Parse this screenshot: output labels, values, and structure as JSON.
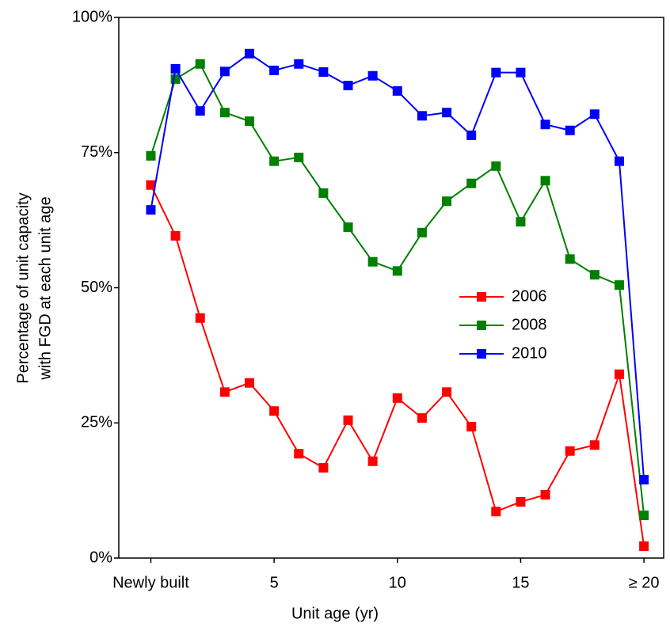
{
  "chart_data": {
    "type": "line",
    "xlabel": "Unit age (yr)",
    "ylabel": [
      "Percentage of unit capacity",
      "with FGD at each unit age"
    ],
    "x": [
      0,
      1,
      2,
      3,
      4,
      5,
      6,
      7,
      8,
      9,
      10,
      11,
      12,
      13,
      14,
      15,
      16,
      17,
      18,
      19,
      20
    ],
    "series": [
      {
        "name": "2006",
        "color": "#ff0000",
        "values": [
          69.0,
          59.6,
          44.4,
          30.7,
          32.4,
          27.2,
          19.3,
          16.7,
          25.5,
          17.9,
          29.6,
          25.9,
          30.7,
          24.3,
          8.6,
          10.4,
          11.7,
          19.8,
          20.9,
          34.0,
          2.2
        ]
      },
      {
        "name": "2008",
        "color": "#008000",
        "values": [
          74.4,
          88.6,
          91.4,
          82.4,
          80.8,
          73.4,
          74.1,
          67.5,
          61.2,
          54.8,
          53.1,
          60.2,
          66.0,
          69.3,
          72.5,
          62.2,
          69.8,
          55.3,
          52.4,
          50.5,
          7.9
        ]
      },
      {
        "name": "2010",
        "color": "#0000ff",
        "values": [
          64.4,
          90.5,
          82.7,
          90.0,
          93.3,
          90.2,
          91.4,
          89.9,
          87.4,
          89.2,
          86.4,
          81.8,
          82.4,
          78.2,
          89.8,
          89.8,
          80.2,
          79.1,
          82.1,
          73.4,
          14.5
        ]
      }
    ],
    "xlim": [
      -1.3,
      20.8
    ],
    "ylim": [
      0,
      100
    ],
    "xticks": [
      {
        "value": 0,
        "label": "Newly built"
      },
      5,
      10,
      15,
      {
        "value": 20,
        "label": "≥ 20"
      }
    ],
    "yticks": [
      {
        "value": 0,
        "label": "0%"
      },
      {
        "value": 25,
        "label": "25%"
      },
      {
        "value": 50,
        "label": "50%"
      },
      {
        "value": 75,
        "label": "75%"
      },
      {
        "value": 100,
        "label": "100%"
      }
    ],
    "legend": "right",
    "grid": false
  }
}
